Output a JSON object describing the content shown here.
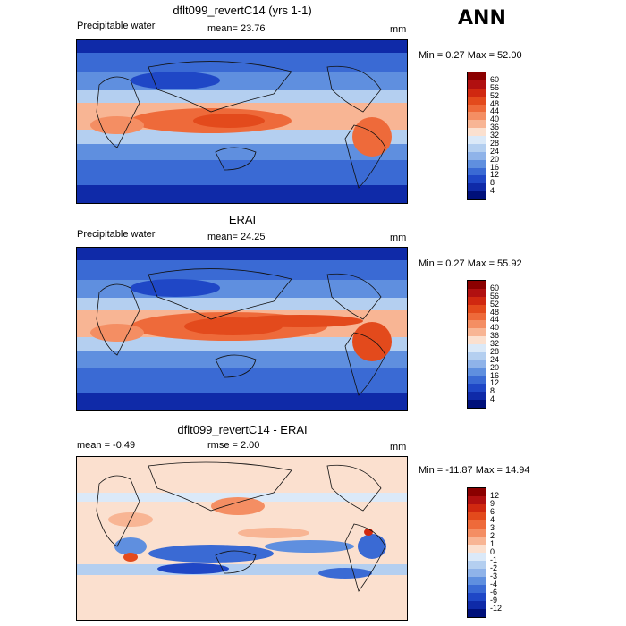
{
  "season": "ANN",
  "panels": [
    {
      "title": "dflt099_revertC14 (yrs 1-1)",
      "left_label": "Precipitable water",
      "center_label": "mean=  23.76",
      "right_label": "mm",
      "minmax": "Min =   0.27 Max =  52.00",
      "colorbar": {
        "levels": [
          "60",
          "56",
          "52",
          "48",
          "44",
          "40",
          "36",
          "32",
          "28",
          "24",
          "20",
          "16",
          "12",
          "8",
          "4"
        ],
        "colors": [
          "#8b0000",
          "#b11010",
          "#d02810",
          "#e34a1c",
          "#ee6a3a",
          "#f48e63",
          "#f8b594",
          "#fbe0cf",
          "#dbe9f8",
          "#b4cff0",
          "#8fb3e9",
          "#5f8fdf",
          "#3a6ad4",
          "#1f47c6",
          "#0f2aa8",
          "#00107a"
        ]
      }
    },
    {
      "title": "ERAI",
      "left_label": "Precipitable water",
      "center_label": "mean=  24.25",
      "right_label": "mm",
      "minmax": "Min =   0.27 Max =  55.92",
      "colorbar": {
        "levels": [
          "60",
          "56",
          "52",
          "48",
          "44",
          "40",
          "36",
          "32",
          "28",
          "24",
          "20",
          "16",
          "12",
          "8",
          "4"
        ],
        "colors": [
          "#8b0000",
          "#b11010",
          "#d02810",
          "#e34a1c",
          "#ee6a3a",
          "#f48e63",
          "#f8b594",
          "#fbe0cf",
          "#dbe9f8",
          "#b4cff0",
          "#8fb3e9",
          "#5f8fdf",
          "#3a6ad4",
          "#1f47c6",
          "#0f2aa8",
          "#00107a"
        ]
      }
    },
    {
      "title": "dflt099_revertC14 - ERAI",
      "left_label": "mean =   -0.49",
      "center_label": "rmse =   2.00",
      "right_label": "mm",
      "minmax": "Min = -11.87 Max =  14.94",
      "colorbar": {
        "levels": [
          "12",
          "9",
          "6",
          "4",
          "3",
          "2",
          "1",
          "0",
          "-1",
          "-2",
          "-3",
          "-4",
          "-6",
          "-9",
          "-12"
        ],
        "colors": [
          "#8b0000",
          "#b11010",
          "#d02810",
          "#e34a1c",
          "#ee6a3a",
          "#f48e63",
          "#f8b594",
          "#fbe0cf",
          "#dbe9f8",
          "#b4cff0",
          "#8fb3e9",
          "#5f8fdf",
          "#3a6ad4",
          "#1f47c6",
          "#0f2aa8",
          "#00107a"
        ]
      }
    }
  ]
}
